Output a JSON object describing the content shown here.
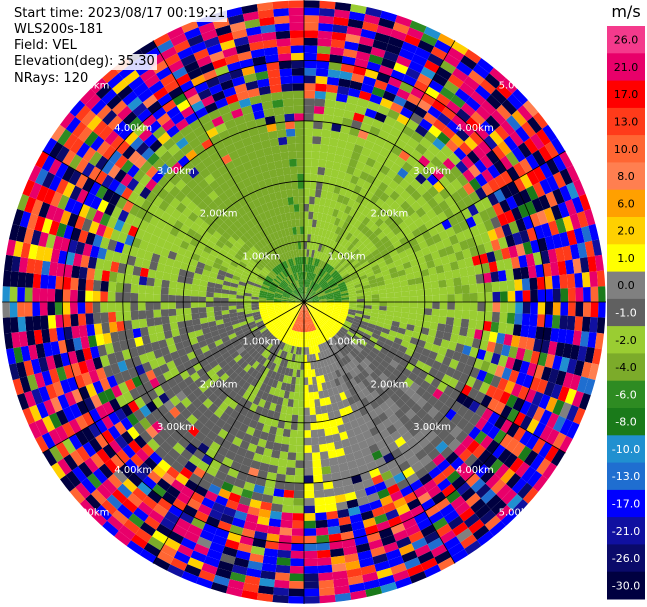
{
  "header": {
    "start_time": "Start time: 2023/08/17 00:19:21",
    "instrument": "WLS200s-181",
    "field": "Field: VEL",
    "elevation": "Elevation(deg): 35.30",
    "nrays": "NRays: 120"
  },
  "colorbar": {
    "unit": "m/s",
    "ticks": [
      "26.0",
      "21.0",
      "17.0",
      "13.0",
      "10.0",
      "8.0",
      "6.0",
      "2.0",
      "1.0",
      "0.0",
      "-1.0",
      "-2.0",
      "-4.0",
      "-6.0",
      "-8.0",
      "-10.0",
      "-13.0",
      "-17.0",
      "-21.0",
      "-26.0",
      "-30.0"
    ],
    "colors": [
      "#f43a8c",
      "#e8006a",
      "#ff0000",
      "#ff3b1a",
      "#ff6633",
      "#ff7f50",
      "#ffa000",
      "#ffd000",
      "#ffff00",
      "#808080",
      "#606060",
      "#9acd32",
      "#7cab2a",
      "#2e8b22",
      "#1a7a1a",
      "#2090d0",
      "#1f6ed0",
      "#0000ff",
      "#1010a0",
      "#0a0a6a",
      "#000040"
    ]
  },
  "chart_data": {
    "type": "heatmap",
    "title": "",
    "projection": "polar PPI",
    "field": "VEL",
    "unit": "m/s",
    "n_rays": 120,
    "range_rings_km": [
      1.0,
      2.0,
      3.0,
      4.0,
      5.0
    ],
    "ring_labels": [
      "1.00km",
      "2.00km",
      "3.00km",
      "4.00km",
      "5.00km"
    ],
    "ring_labels_shown": [
      "1.00km",
      "2.00km",
      "3.00km",
      "4.00km",
      "5.00km",
      "1.00km",
      "2.00km",
      "3.00km",
      "4.00km",
      "5.00km",
      "1.00km",
      "2.00km",
      "3.00km",
      "4.00km",
      "5.00km",
      "1.00km",
      "2.00km",
      "3.00km",
      "4.00km",
      "5.00km"
    ],
    "color_range": [
      -30.0,
      26.0
    ],
    "max_range_km": 5.0,
    "pattern": {
      "near_range_north": "dark green, -6 to -4 m/s",
      "near_range_south": "yellow, 1 to 2 m/s",
      "near_range_small_red": "10 to 13 m/s",
      "mid_range_west": "green, -2 to -4 m/s",
      "mid_range_east": "yellow/gray, 0 to 2 m/s",
      "far_range": "noisy, full color range"
    }
  }
}
